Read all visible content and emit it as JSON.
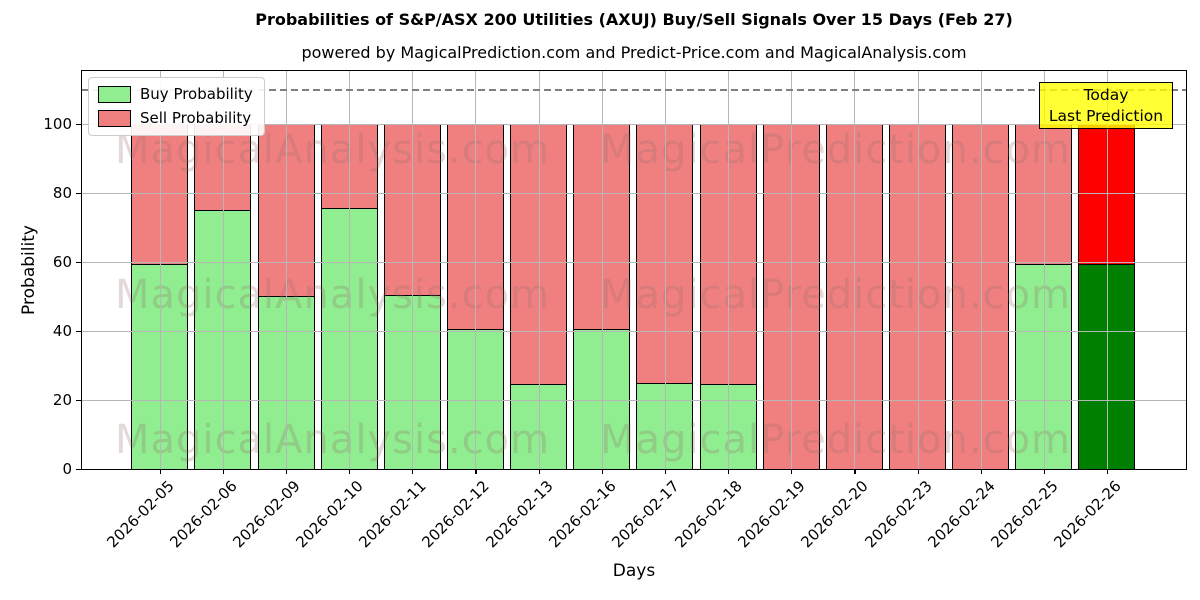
{
  "chart_data": {
    "type": "bar",
    "stacked": true,
    "title": "Probabilities of S&P/ASX 200 Utilities (AXUJ) Buy/Sell Signals Over 15 Days (Feb 27)",
    "subtitle": "powered by MagicalPrediction.com and Predict-Price.com and MagicalAnalysis.com",
    "xlabel": "Days",
    "ylabel": "Probability",
    "categories": [
      "2026-02-05",
      "2026-02-06",
      "2026-02-09",
      "2026-02-10",
      "2026-02-11",
      "2026-02-12",
      "2026-02-13",
      "2026-02-16",
      "2026-02-17",
      "2026-02-18",
      "2026-02-19",
      "2026-02-20",
      "2026-02-23",
      "2026-02-24",
      "2026-02-25",
      "2026-02-26"
    ],
    "series": [
      {
        "name": "Buy Probability",
        "color": "#90ee90",
        "final_bar_color": "#008000",
        "values": [
          59.5,
          75,
          50,
          75.5,
          50.5,
          40.5,
          24.5,
          40.5,
          25,
          24.5,
          0,
          0,
          0,
          0,
          59.5,
          59.5
        ]
      },
      {
        "name": "Sell Probability",
        "color": "#f08080",
        "final_bar_color": "#ff0000",
        "values": [
          40.5,
          25,
          50,
          24.5,
          49.5,
          59.5,
          75.5,
          59.5,
          75,
          75.5,
          100,
          100,
          100,
          100,
          40.5,
          40.5
        ]
      }
    ],
    "ylim": [
      0,
      115.25
    ],
    "yticks": [
      0,
      20,
      40,
      60,
      80,
      100
    ],
    "grid": true,
    "legend_position": "upper left",
    "threshold_line": {
      "y": 110,
      "style": "dashed",
      "color": "#7f7f7f"
    },
    "bar_edge_color": "#000000"
  },
  "watermarks": {
    "left": "MagicalAnalysis.com",
    "right": "MagicalPrediction.com"
  },
  "annotation": {
    "line1": "Today",
    "line2": "Last Prediction",
    "bg_color": "#ffff00",
    "border_color": "#000000"
  }
}
